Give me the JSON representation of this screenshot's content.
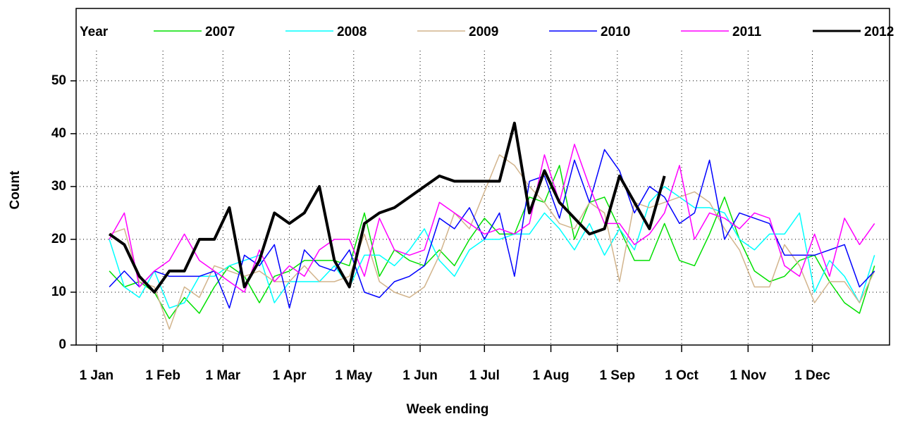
{
  "chart_data": {
    "type": "line",
    "x_label": "Week ending",
    "y_label": "Count",
    "legend_title": "Year",
    "legend": "top",
    "grid": true,
    "x": [
      6,
      13,
      20,
      27,
      34,
      41,
      48,
      55,
      62,
      69,
      76,
      83,
      90,
      97,
      104,
      111,
      118,
      125,
      132,
      139,
      146,
      153,
      160,
      167,
      174,
      181,
      188,
      195,
      202,
      209,
      216,
      223,
      230,
      237,
      244,
      251,
      258,
      265,
      272,
      279,
      286,
      293,
      300,
      307,
      314,
      321,
      328,
      335,
      342,
      349,
      356,
      363
    ],
    "xlim": [
      -9.5,
      370
    ],
    "ylim": [
      0,
      63.7
    ],
    "xticks": [
      {
        "value": 0,
        "label": "1 Jan"
      },
      {
        "value": 31,
        "label": "1 Feb"
      },
      {
        "value": 59,
        "label": "1 Mar"
      },
      {
        "value": 90,
        "label": "1 Apr"
      },
      {
        "value": 120,
        "label": "1 May"
      },
      {
        "value": 151,
        "label": "1 Jun"
      },
      {
        "value": 181,
        "label": "1 Jul"
      },
      {
        "value": 212,
        "label": "1 Aug"
      },
      {
        "value": 243,
        "label": "1 Sep"
      },
      {
        "value": 273,
        "label": "1 Oct"
      },
      {
        "value": 304,
        "label": "1 Nov"
      },
      {
        "value": 334,
        "label": "1 Dec"
      }
    ],
    "yticks": [
      0,
      10,
      20,
      30,
      40,
      50
    ],
    "series": [
      {
        "name": "2007",
        "color": "#00e000",
        "values": [
          14,
          11,
          12,
          10,
          5,
          9,
          6,
          11,
          15,
          13,
          8,
          13,
          14,
          16,
          16,
          16,
          15,
          25,
          13,
          18,
          16,
          15,
          18,
          15,
          20,
          24,
          21,
          21,
          28,
          27,
          34,
          20,
          27,
          28,
          22,
          16,
          16,
          23,
          16,
          15,
          21,
          28,
          20,
          14,
          12,
          13,
          16,
          17,
          12,
          8,
          6,
          15
        ]
      },
      {
        "name": "2008",
        "color": "#00ffff",
        "values": [
          20,
          11,
          9,
          14,
          7,
          8,
          13,
          13,
          15,
          16,
          17,
          8,
          12,
          12,
          12,
          15,
          11,
          17,
          17,
          15,
          18,
          22,
          16,
          13,
          18,
          20,
          20,
          21,
          21,
          25,
          22,
          18,
          23,
          17,
          22,
          18,
          27,
          30,
          28,
          26,
          26,
          25,
          20,
          18,
          21,
          21,
          25,
          10,
          16,
          13,
          8,
          17
        ]
      },
      {
        "name": "2009",
        "color": "#d2b48c",
        "values": [
          21,
          22,
          12,
          11,
          3,
          11,
          9,
          15,
          14,
          13,
          14,
          12,
          12,
          15,
          12,
          12,
          13,
          21,
          12,
          10,
          9,
          11,
          17,
          25,
          22,
          29,
          36,
          34,
          30,
          27,
          23,
          22,
          27,
          25,
          12,
          27,
          26,
          27,
          28,
          29,
          27,
          22,
          18,
          11,
          11,
          19,
          15,
          8,
          12,
          12,
          8,
          14
        ]
      },
      {
        "name": "2010",
        "color": "#0000ff",
        "values": [
          11,
          14,
          11,
          14,
          13,
          13,
          13,
          14,
          7,
          17,
          15,
          19,
          7,
          18,
          15,
          14,
          18,
          10,
          9,
          12,
          13,
          15,
          24,
          22,
          26,
          20,
          25,
          13,
          31,
          32,
          24,
          35,
          27,
          37,
          33,
          25,
          30,
          28,
          23,
          25,
          35,
          20,
          25,
          24,
          23,
          17,
          17,
          17,
          18,
          19,
          11,
          14
        ]
      },
      {
        "name": "2011",
        "color": "#ff00ff",
        "values": [
          20,
          25,
          11,
          14,
          16,
          21,
          16,
          14,
          12,
          10,
          18,
          12,
          15,
          13,
          18,
          20,
          20,
          13,
          24,
          18,
          17,
          18,
          27,
          25,
          23,
          21,
          22,
          21,
          23,
          36,
          27,
          38,
          30,
          23,
          23,
          19,
          21,
          25,
          34,
          20,
          25,
          24,
          22,
          25,
          24,
          15,
          13,
          21,
          13,
          24,
          19,
          23
        ]
      },
      {
        "name": "2012",
        "color": "#000000",
        "values": [
          21,
          19,
          13,
          10,
          14,
          14,
          20,
          20,
          26,
          11,
          16,
          25,
          23,
          25,
          30,
          16,
          11,
          23,
          25,
          26,
          28,
          30,
          32,
          31,
          31,
          31,
          31,
          42,
          25,
          33,
          27,
          24,
          21,
          22,
          32,
          27,
          22,
          32,
          null,
          null,
          null,
          null,
          null,
          null,
          null,
          null,
          null,
          null,
          null,
          null,
          null,
          null
        ]
      }
    ]
  }
}
